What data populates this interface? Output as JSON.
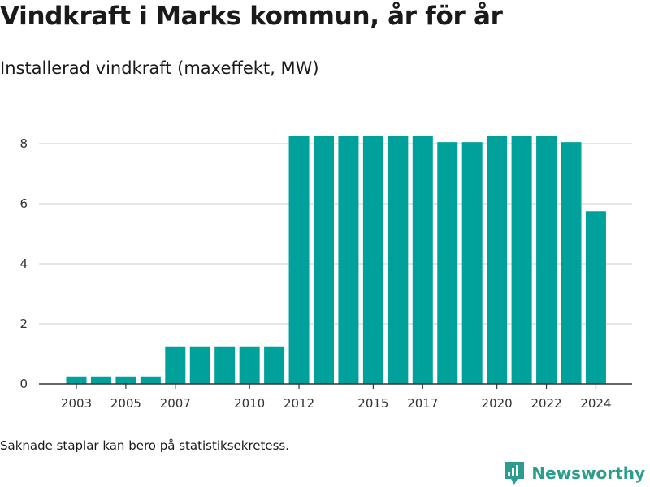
{
  "header": {
    "title": "Vindkraft i Marks kommun, år för år",
    "subtitle": "Installerad vindkraft (maxeffekt, MW)"
  },
  "footer": {
    "note": "Saknade staplar kan bero på statistiksekretess.",
    "brand": "Newsworthy"
  },
  "colors": {
    "bar": "#00a19a",
    "grid": "#dddddd",
    "axis": "#333333",
    "brand": "#2a9d8f"
  },
  "chart_data": {
    "type": "bar",
    "title": "Vindkraft i Marks kommun, år för år",
    "subtitle": "Installerad vindkraft (maxeffekt, MW)",
    "xlabel": "",
    "ylabel": "",
    "ylim": [
      0,
      9
    ],
    "yticks": [
      0,
      2,
      4,
      6,
      8
    ],
    "grid": true,
    "categories": [
      "2003",
      "2004",
      "2005",
      "2006",
      "2007",
      "2008",
      "2009",
      "2010",
      "2011",
      "2012",
      "2013",
      "2014",
      "2015",
      "2016",
      "2017",
      "2018",
      "2019",
      "2020",
      "2021",
      "2022",
      "2023",
      "2024"
    ],
    "xtick_labels": [
      "2003",
      "2005",
      "2007",
      "2010",
      "2012",
      "2015",
      "2017",
      "2020",
      "2022",
      "2024"
    ],
    "values": [
      0.25,
      0.25,
      0.25,
      0.25,
      1.25,
      1.25,
      1.25,
      1.25,
      1.25,
      8.25,
      8.25,
      8.25,
      8.25,
      8.25,
      8.25,
      8.05,
      8.05,
      8.25,
      8.25,
      8.25,
      8.05,
      5.75
    ]
  }
}
